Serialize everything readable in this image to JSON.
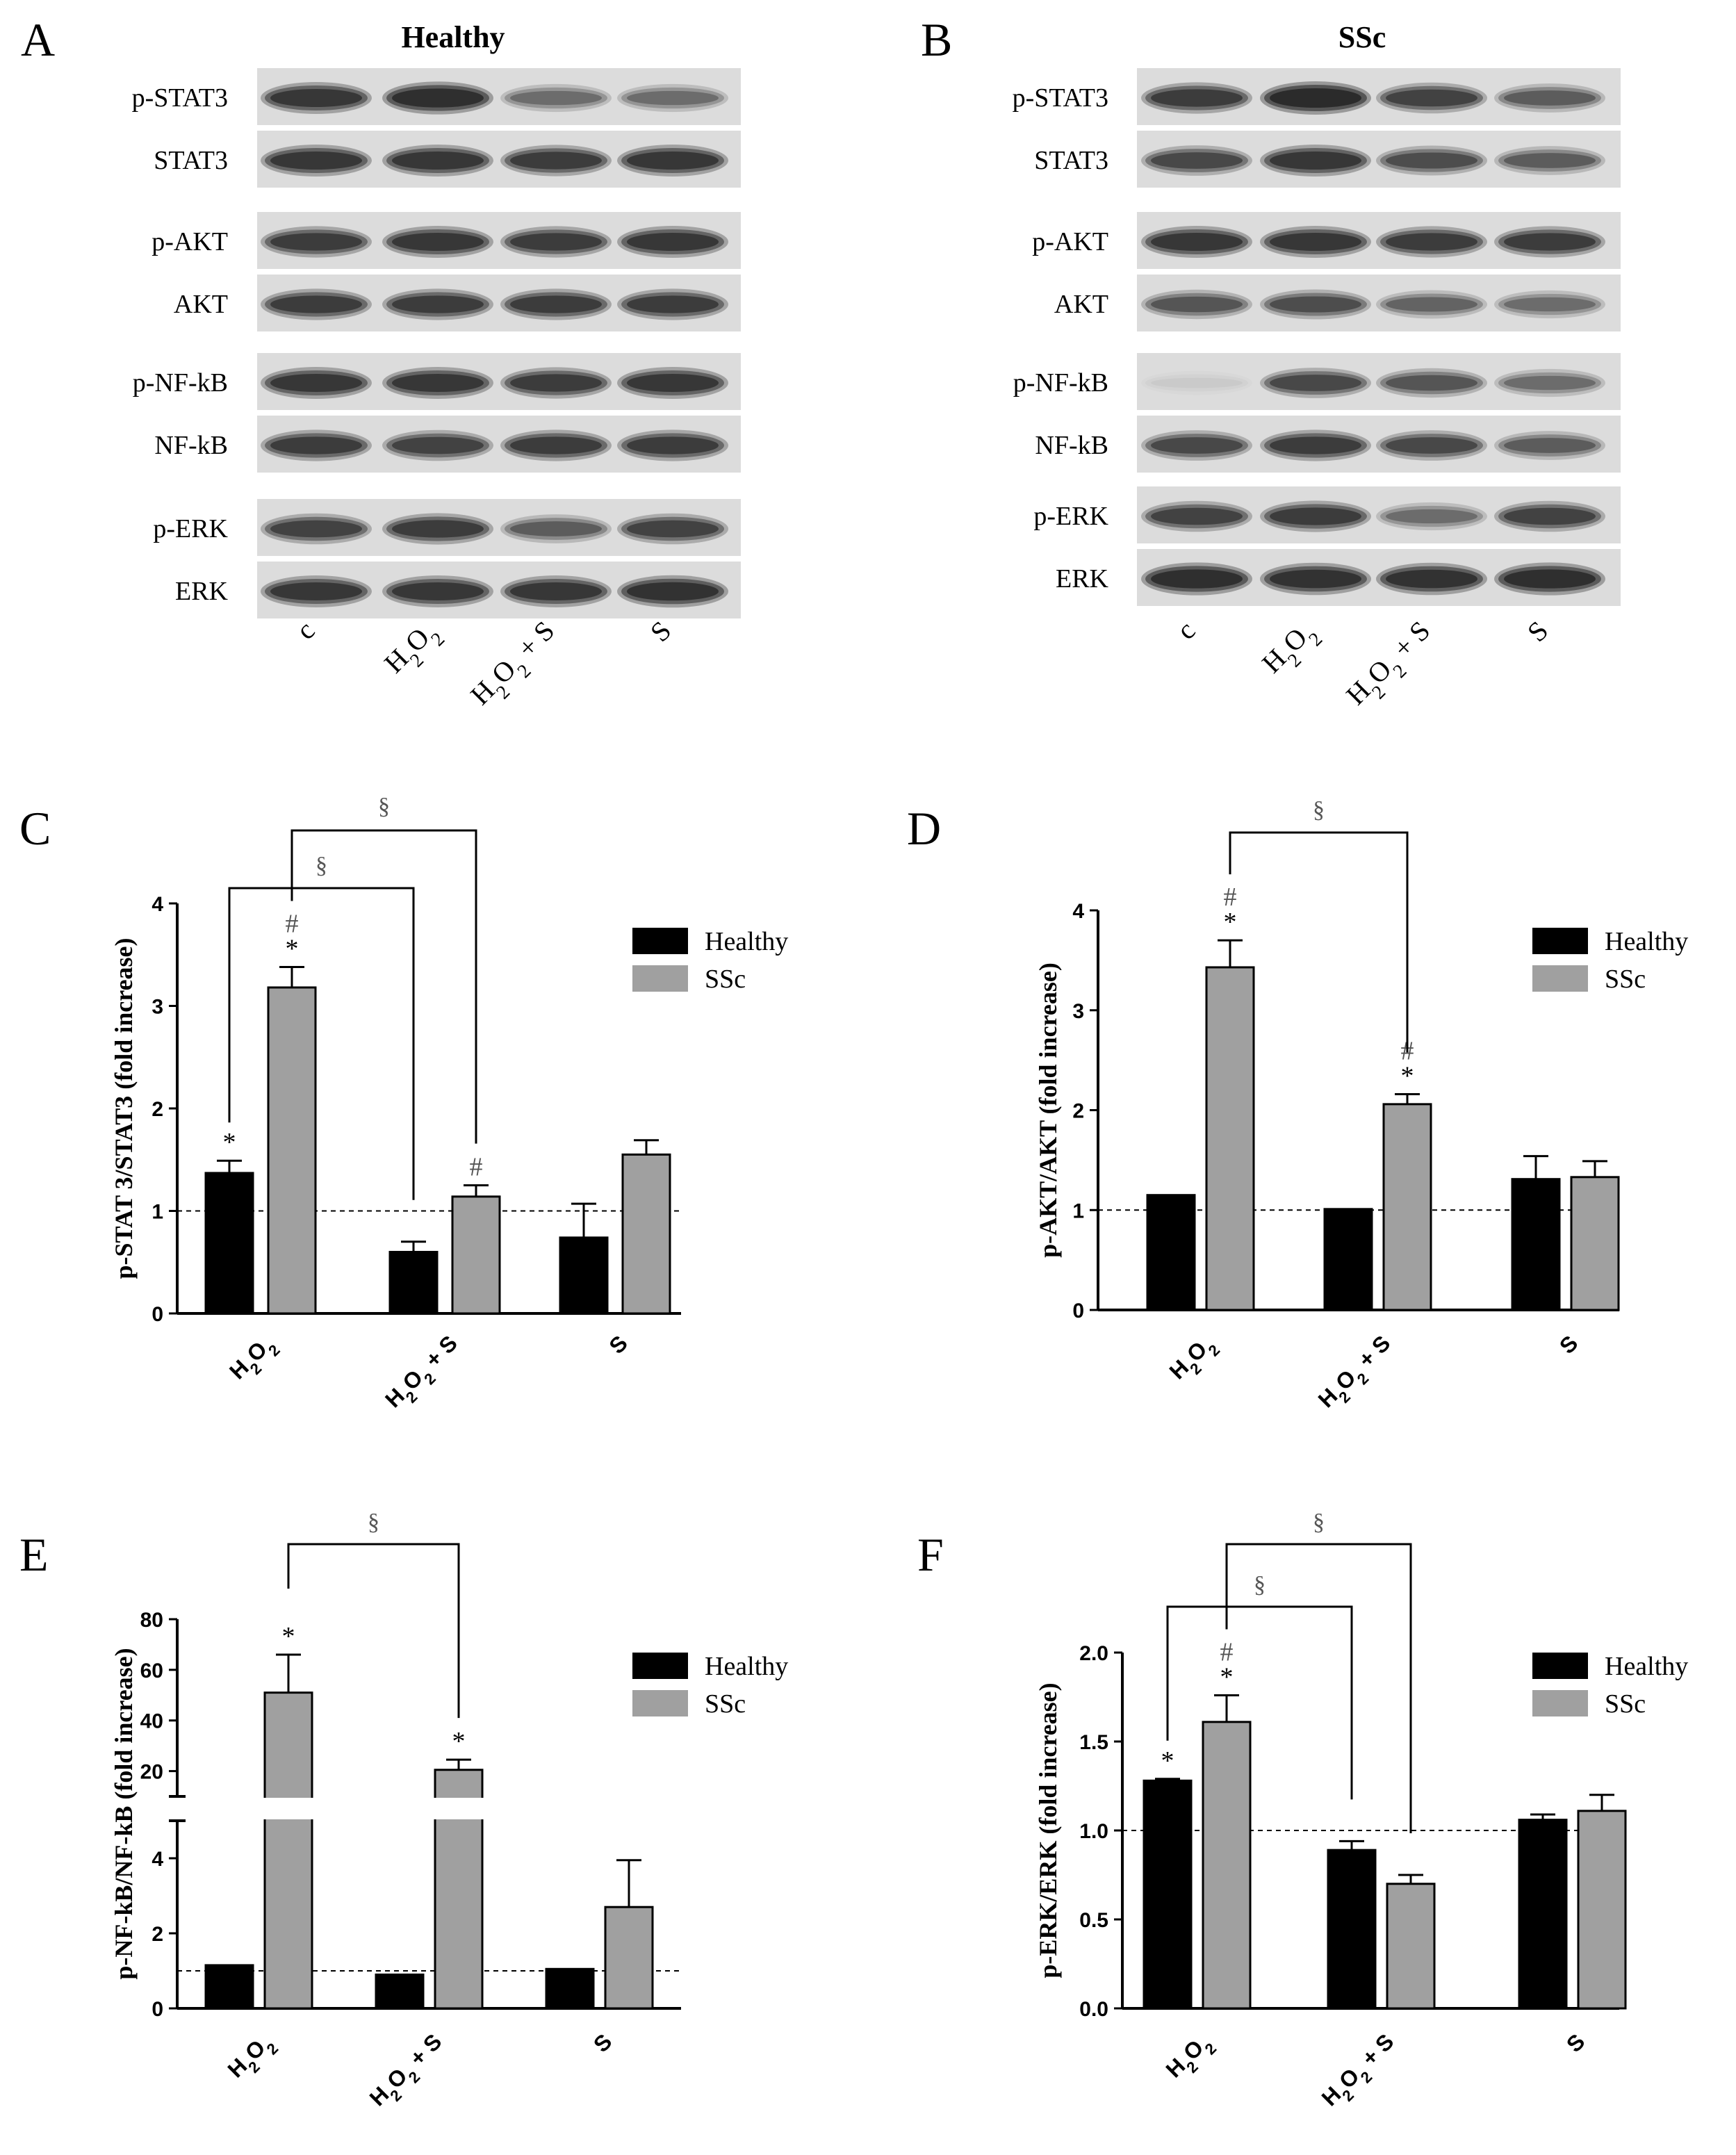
{
  "colors": {
    "healthy": "#000000",
    "ssc": "#a0a0a0",
    "blot_band": "#1e1e1e",
    "blot_bg": "#dcdcdc"
  },
  "blots": [
    {
      "panel": "A",
      "title": "Healthy",
      "lanes": [
        "c",
        "H2O2",
        "H2O2 + S",
        "S"
      ],
      "rows": [
        {
          "label": "p-STAT3",
          "intensity": [
            0.85,
            0.95,
            0.45,
            0.45
          ]
        },
        {
          "label": "STAT3",
          "intensity": [
            0.85,
            0.85,
            0.8,
            0.85
          ]
        },
        {
          "label": "p-AKT",
          "intensity": [
            0.8,
            0.85,
            0.8,
            0.85
          ]
        },
        {
          "label": "AKT",
          "intensity": [
            0.8,
            0.8,
            0.8,
            0.8
          ]
        },
        {
          "label": "p-NF-kB",
          "intensity": [
            0.85,
            0.85,
            0.8,
            0.85
          ]
        },
        {
          "label": "NF-kB",
          "intensity": [
            0.8,
            0.75,
            0.8,
            0.8
          ]
        },
        {
          "label": "p-ERK",
          "intensity": [
            0.75,
            0.8,
            0.55,
            0.75
          ]
        },
        {
          "label": "ERK",
          "intensity": [
            0.85,
            0.85,
            0.85,
            0.9
          ]
        }
      ]
    },
    {
      "panel": "B",
      "title": "SSc",
      "lanes": [
        "c",
        "H2O2",
        "H2O2 + S",
        "S"
      ],
      "rows": [
        {
          "label": "p-STAT3",
          "intensity": [
            0.8,
            1.0,
            0.75,
            0.55
          ]
        },
        {
          "label": "STAT3",
          "intensity": [
            0.7,
            0.85,
            0.65,
            0.55
          ]
        },
        {
          "label": "p-AKT",
          "intensity": [
            0.85,
            0.85,
            0.8,
            0.8
          ]
        },
        {
          "label": "AKT",
          "intensity": [
            0.6,
            0.65,
            0.5,
            0.45
          ]
        },
        {
          "label": "p-NF-kB",
          "intensity": [
            0.05,
            0.7,
            0.6,
            0.45
          ]
        },
        {
          "label": "NF-kB",
          "intensity": [
            0.7,
            0.8,
            0.7,
            0.55
          ]
        },
        {
          "label": "p-ERK",
          "intensity": [
            0.75,
            0.8,
            0.45,
            0.75
          ]
        },
        {
          "label": "ERK",
          "intensity": [
            0.95,
            0.9,
            0.9,
            0.95
          ]
        }
      ]
    }
  ],
  "chart_data": [
    {
      "panel": "C",
      "type": "bar",
      "categories": [
        "H2O2",
        "H2O2 + S",
        "S"
      ],
      "ylabel": "p-STAT 3/STAT3  (fold increase)",
      "ylim": [
        0,
        4
      ],
      "yticks": [
        "0",
        "1",
        "2",
        "3",
        "4"
      ],
      "reference_line": 1,
      "series": [
        {
          "name": "Healthy",
          "values": [
            1.37,
            0.6,
            0.74
          ],
          "errors": [
            0.12,
            0.1,
            0.33
          ],
          "marks": [
            "*",
            "",
            ""
          ]
        },
        {
          "name": "SSc",
          "values": [
            3.18,
            1.14,
            1.55
          ],
          "errors": [
            0.2,
            0.11,
            0.14
          ],
          "marks": [
            "#\n*",
            "#",
            ""
          ]
        }
      ],
      "brackets": [
        {
          "from": "Healthy:H2O2",
          "to": "Healthy:H2O2 + S",
          "label": "§"
        },
        {
          "from": "SSc:H2O2",
          "to": "SSc:H2O2 + S",
          "label": "§"
        }
      ],
      "legend": "right"
    },
    {
      "panel": "D",
      "type": "bar",
      "categories": [
        "H2O2",
        "H2O2 + S",
        "S"
      ],
      "ylabel": "p-AKT/AKT (fold increase)",
      "ylim": [
        0,
        4
      ],
      "yticks": [
        "0",
        "1",
        "2",
        "3",
        "4"
      ],
      "reference_line": 1,
      "series": [
        {
          "name": "Healthy",
          "values": [
            1.15,
            1.01,
            1.31
          ],
          "errors": [
            0,
            0,
            0.23
          ],
          "marks": [
            "",
            "",
            ""
          ]
        },
        {
          "name": "SSc",
          "values": [
            3.43,
            2.06,
            1.33
          ],
          "errors": [
            0.27,
            0.1,
            0.16
          ],
          "marks": [
            "#\n*",
            "#\n*",
            ""
          ]
        }
      ],
      "brackets": [
        {
          "from": "SSc:H2O2",
          "to": "SSc:H2O2 + S",
          "label": "§"
        }
      ],
      "legend": "right"
    },
    {
      "panel": "E",
      "type": "bar",
      "categories": [
        "H2O2",
        "H2O2 + S",
        "S"
      ],
      "ylabel": "p-NF-kB/NF-kB  (fold increase)",
      "axis_break": true,
      "lower_ylim": [
        0,
        5
      ],
      "lower_yticks": [
        "0",
        "2",
        "4"
      ],
      "upper_ylim": [
        10,
        80
      ],
      "upper_yticks": [
        "20",
        "40",
        "60",
        "80"
      ],
      "reference_line": 1,
      "series": [
        {
          "name": "Healthy",
          "values": [
            1.15,
            0.9,
            1.05
          ],
          "errors": [
            0,
            0,
            0
          ],
          "marks": [
            "",
            "",
            ""
          ]
        },
        {
          "name": "SSc",
          "values": [
            51,
            20.5,
            2.7
          ],
          "errors": [
            15,
            4,
            1.25
          ],
          "marks": [
            "*",
            "*",
            ""
          ]
        }
      ],
      "brackets": [
        {
          "from": "SSc:H2O2",
          "to": "SSc:H2O2 + S",
          "label": "§"
        }
      ],
      "legend": "right"
    },
    {
      "panel": "F",
      "type": "bar",
      "categories": [
        "H2O2",
        "H2O2 + S",
        "S"
      ],
      "ylabel": "p-ERK/ERK  (fold increase)",
      "ylim": [
        0,
        2
      ],
      "yticks": [
        "0.0",
        "0.5",
        "1.0",
        "1.5",
        "2.0"
      ],
      "reference_line": 1,
      "series": [
        {
          "name": "Healthy",
          "values": [
            1.28,
            0.89,
            1.06
          ],
          "errors": [
            0.01,
            0.05,
            0.03
          ],
          "marks": [
            "*",
            "",
            ""
          ]
        },
        {
          "name": "SSc",
          "values": [
            1.61,
            0.7,
            1.11
          ],
          "errors": [
            0.15,
            0.05,
            0.09
          ],
          "marks": [
            "#\n*",
            "",
            ""
          ]
        }
      ],
      "brackets": [
        {
          "from": "Healthy:H2O2",
          "to": "Healthy:H2O2 + S",
          "label": "§"
        },
        {
          "from": "SSc:H2O2",
          "to": "SSc:H2O2 + S",
          "label": "§"
        }
      ],
      "legend": "right"
    }
  ]
}
